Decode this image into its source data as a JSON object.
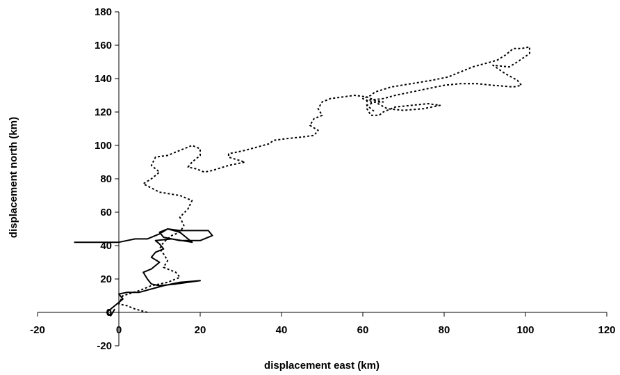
{
  "chart_data": {
    "type": "line",
    "title": "",
    "xlabel": "displacement east (km)",
    "ylabel": "displacement north (km)",
    "xlim": [
      -20,
      120
    ],
    "ylim": [
      -20,
      180
    ],
    "xticks": [
      -20,
      0,
      20,
      40,
      60,
      80,
      100,
      120
    ],
    "yticks": [
      -20,
      0,
      20,
      40,
      60,
      80,
      100,
      120,
      140,
      160,
      180
    ],
    "x_tick_labels": [
      "-20",
      "0",
      "20",
      "40",
      "60",
      "80",
      "100",
      "120"
    ],
    "y_tick_labels": [
      "-20",
      "0",
      "20",
      "40",
      "60",
      "80",
      "100",
      "120",
      "140",
      "160",
      "180"
    ],
    "grid": false,
    "legend": "none",
    "series": [
      {
        "style": "solid",
        "points": [
          [
            -11,
            42
          ],
          [
            -6,
            42
          ],
          [
            0,
            42
          ],
          [
            4,
            44
          ],
          [
            7,
            44
          ],
          [
            10,
            47
          ],
          [
            12,
            50
          ],
          [
            15,
            49
          ],
          [
            18,
            49
          ],
          [
            22,
            49
          ],
          [
            23,
            46
          ],
          [
            20,
            43
          ],
          [
            15,
            43
          ],
          [
            11,
            45
          ],
          [
            10,
            48
          ],
          [
            12,
            50
          ],
          [
            15,
            48
          ],
          [
            17,
            44
          ],
          [
            18,
            42
          ],
          [
            13,
            44
          ],
          [
            9,
            43
          ],
          [
            10,
            41
          ],
          [
            11,
            38
          ],
          [
            9,
            36
          ],
          [
            8,
            33
          ],
          [
            10,
            30
          ],
          [
            8,
            26
          ],
          [
            6,
            24
          ],
          [
            7,
            20
          ],
          [
            8,
            17
          ],
          [
            10,
            16
          ],
          [
            14,
            17
          ],
          [
            20,
            19
          ],
          [
            15,
            18
          ],
          [
            11,
            16
          ],
          [
            8,
            14
          ],
          [
            5,
            12
          ],
          [
            2,
            12
          ],
          [
            0,
            11
          ],
          [
            1,
            8
          ],
          [
            0,
            6
          ],
          [
            -2,
            2
          ],
          [
            -3,
            0
          ],
          [
            -2,
            -2
          ],
          [
            -1,
            2
          ]
        ]
      },
      {
        "style": "dotted",
        "points": [
          [
            7,
            0
          ],
          [
            4,
            2
          ],
          [
            2,
            4
          ],
          [
            0,
            5
          ],
          [
            1,
            10
          ],
          [
            5,
            13
          ],
          [
            8,
            16
          ],
          [
            12,
            18
          ],
          [
            15,
            21
          ],
          [
            14,
            24
          ],
          [
            11,
            27
          ],
          [
            12,
            31
          ],
          [
            11,
            35
          ],
          [
            10,
            38
          ],
          [
            11,
            42
          ],
          [
            13,
            46
          ],
          [
            15,
            48
          ],
          [
            16,
            52
          ],
          [
            15,
            57
          ],
          [
            17,
            62
          ],
          [
            18,
            67
          ],
          [
            15,
            70
          ],
          [
            10,
            72
          ],
          [
            6,
            77
          ],
          [
            8,
            80
          ],
          [
            10,
            84
          ],
          [
            8,
            88
          ],
          [
            9,
            93
          ],
          [
            12,
            94
          ],
          [
            15,
            97
          ],
          [
            18,
            100
          ],
          [
            20,
            98
          ],
          [
            20,
            94
          ],
          [
            18,
            90
          ],
          [
            17,
            87
          ],
          [
            19,
            86
          ],
          [
            21,
            84
          ],
          [
            23,
            85
          ],
          [
            27,
            88
          ],
          [
            31,
            90
          ],
          [
            27,
            93
          ],
          [
            27,
            95
          ],
          [
            31,
            97
          ],
          [
            34,
            99
          ],
          [
            37,
            101
          ],
          [
            38,
            103
          ],
          [
            41,
            104
          ],
          [
            45,
            105
          ],
          [
            48,
            106
          ],
          [
            49,
            109
          ],
          [
            47,
            112
          ],
          [
            48,
            116
          ],
          [
            50,
            118
          ],
          [
            49,
            122
          ],
          [
            50,
            126
          ],
          [
            52,
            128
          ],
          [
            55,
            129
          ],
          [
            58,
            130
          ],
          [
            61,
            129
          ],
          [
            63,
            127
          ],
          [
            65,
            126
          ],
          [
            62,
            126
          ],
          [
            60,
            128
          ],
          [
            62,
            130
          ],
          [
            63,
            132
          ],
          [
            67,
            135
          ],
          [
            72,
            137
          ],
          [
            77,
            139
          ],
          [
            81,
            141
          ],
          [
            84,
            144
          ],
          [
            87,
            147
          ],
          [
            90,
            149
          ],
          [
            93,
            151
          ],
          [
            95,
            154
          ],
          [
            97,
            158
          ],
          [
            99,
            158
          ],
          [
            101,
            159
          ],
          [
            101,
            155
          ],
          [
            98,
            150
          ],
          [
            96,
            147
          ],
          [
            92,
            148
          ],
          [
            95,
            143
          ],
          [
            98,
            139
          ],
          [
            99,
            136
          ],
          [
            97,
            135
          ],
          [
            92,
            136
          ],
          [
            88,
            137
          ],
          [
            84,
            137
          ],
          [
            80,
            136
          ],
          [
            76,
            134
          ],
          [
            72,
            132
          ],
          [
            68,
            130
          ],
          [
            65,
            128
          ],
          [
            61,
            127
          ],
          [
            61,
            122
          ],
          [
            62,
            118
          ],
          [
            64,
            118
          ],
          [
            65,
            120
          ],
          [
            68,
            123
          ],
          [
            72,
            124
          ],
          [
            76,
            125
          ],
          [
            79,
            124
          ],
          [
            75,
            122
          ],
          [
            70,
            121
          ],
          [
            66,
            122
          ],
          [
            63,
            126
          ],
          [
            61,
            124
          ],
          [
            63,
            120
          ]
        ]
      }
    ]
  }
}
